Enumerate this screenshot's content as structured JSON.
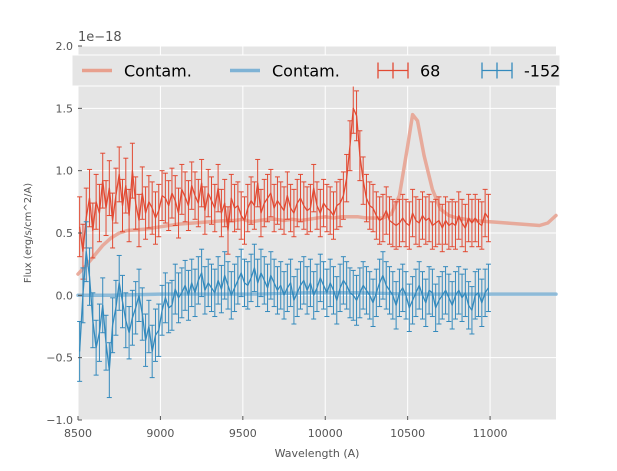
{
  "chart_data": {
    "type": "line",
    "title": "",
    "xlabel": "Wavelength (A)",
    "ylabel": "Flux (erg/s/cm^2/A)",
    "offset_text": "1e−18",
    "xlim": [
      8500,
      11400
    ],
    "ylim": [
      -1.0,
      2.0
    ],
    "x_ticks": [
      8500,
      9000,
      9500,
      10000,
      10500,
      11000
    ],
    "x_tick_labels": [
      "8500",
      "9000",
      "9500",
      "10000",
      "10500",
      "11000"
    ],
    "y_ticks": [
      -1.0,
      -0.5,
      0.0,
      0.5,
      1.0,
      1.5,
      2.0
    ],
    "y_tick_labels": [
      "−1.0",
      "−0.5",
      "0.0",
      "0.5",
      "1.0",
      "1.5",
      "2.0"
    ],
    "grid": true,
    "legend_position": "top",
    "legend": [
      {
        "label": "Contam.",
        "kind": "line",
        "color": "#E8A08E"
      },
      {
        "label": "Contam.",
        "kind": "line",
        "color": "#7FB3D5"
      },
      {
        "label": "68",
        "kind": "errorbar",
        "color": "#E24A33"
      },
      {
        "label": "-152",
        "kind": "errorbar",
        "color": "#348ABD"
      }
    ],
    "series": [
      {
        "name": "68",
        "kind": "errorbar",
        "color": "#E24A33",
        "contam_color": "#E8A08E",
        "x_start": 8510,
        "x_step": 20,
        "y": [
          0.55,
          0.35,
          0.62,
          0.78,
          0.52,
          0.75,
          0.66,
          0.92,
          0.7,
          0.86,
          0.6,
          0.8,
          0.97,
          0.72,
          0.88,
          0.64,
          1.0,
          0.74,
          0.6,
          0.82,
          0.66,
          0.75,
          0.7,
          0.62,
          0.68,
          0.8,
          0.78,
          0.72,
          0.82,
          0.76,
          0.66,
          0.85,
          0.79,
          0.72,
          0.88,
          0.8,
          0.74,
          0.9,
          0.68,
          0.82,
          0.76,
          0.7,
          0.86,
          0.66,
          0.74,
          0.52,
          0.78,
          0.7,
          0.72,
          0.64,
          0.6,
          0.7,
          0.76,
          0.72,
          0.9,
          0.66,
          0.74,
          0.78,
          0.82,
          0.7,
          0.76,
          0.72,
          0.68,
          0.8,
          0.7,
          0.66,
          0.74,
          0.78,
          0.72,
          0.68,
          0.7,
          0.86,
          0.72,
          0.66,
          0.74,
          0.7,
          0.68,
          0.64,
          0.72,
          0.74,
          0.8,
          0.94,
          1.2,
          1.5,
          1.44,
          1.12,
          0.92,
          0.78,
          0.72,
          0.7,
          0.64,
          0.6,
          0.62,
          0.68,
          0.6,
          0.58,
          0.56,
          0.58,
          0.62,
          0.58,
          0.56,
          0.66,
          0.6,
          0.58,
          0.64,
          0.6,
          0.62,
          0.56,
          0.58,
          0.6,
          0.54,
          0.6,
          0.56,
          0.58,
          0.56,
          0.64,
          0.58,
          0.54,
          0.62,
          0.58,
          0.62,
          0.58,
          0.56,
          0.66,
          0.62
        ],
        "yerr": [
          0.24,
          0.22,
          0.24,
          0.23,
          0.22,
          0.22,
          0.23,
          0.22,
          0.22,
          0.22,
          0.22,
          0.22,
          0.22,
          0.21,
          0.22,
          0.21,
          0.22,
          0.21,
          0.21,
          0.21,
          0.21,
          0.21,
          0.21,
          0.21,
          0.21,
          0.2,
          0.2,
          0.2,
          0.2,
          0.2,
          0.2,
          0.2,
          0.2,
          0.2,
          0.19,
          0.19,
          0.19,
          0.19,
          0.19,
          0.19,
          0.19,
          0.19,
          0.19,
          0.19,
          0.19,
          0.19,
          0.19,
          0.19,
          0.19,
          0.19,
          0.19,
          0.19,
          0.19,
          0.19,
          0.19,
          0.19,
          0.19,
          0.19,
          0.19,
          0.19,
          0.19,
          0.19,
          0.19,
          0.19,
          0.19,
          0.19,
          0.19,
          0.19,
          0.19,
          0.19,
          0.19,
          0.19,
          0.19,
          0.19,
          0.19,
          0.19,
          0.19,
          0.19,
          0.19,
          0.19,
          0.19,
          0.19,
          0.2,
          0.2,
          0.2,
          0.2,
          0.19,
          0.19,
          0.19,
          0.19,
          0.19,
          0.19,
          0.19,
          0.19,
          0.19,
          0.19,
          0.19,
          0.19,
          0.19,
          0.19,
          0.19,
          0.19,
          0.19,
          0.19,
          0.19,
          0.19,
          0.19,
          0.19,
          0.19,
          0.19,
          0.19,
          0.19,
          0.19,
          0.19,
          0.19,
          0.19,
          0.19,
          0.19,
          0.19,
          0.19,
          0.19,
          0.19,
          0.19,
          0.19,
          0.19
        ],
        "contam": [
          [
            8500,
            0.17
          ],
          [
            8550,
            0.24
          ],
          [
            8600,
            0.32
          ],
          [
            8650,
            0.4
          ],
          [
            8700,
            0.46
          ],
          [
            8750,
            0.5
          ],
          [
            8800,
            0.52
          ],
          [
            8900,
            0.53
          ],
          [
            9000,
            0.55
          ],
          [
            9100,
            0.57
          ],
          [
            9200,
            0.58
          ],
          [
            9300,
            0.59
          ],
          [
            9400,
            0.6
          ],
          [
            9450,
            0.6
          ],
          [
            9500,
            0.61
          ],
          [
            9550,
            0.59
          ],
          [
            9600,
            0.6
          ],
          [
            9650,
            0.61
          ],
          [
            9700,
            0.61
          ],
          [
            9750,
            0.6
          ],
          [
            9800,
            0.61
          ],
          [
            9850,
            0.6
          ],
          [
            9900,
            0.61
          ],
          [
            9950,
            0.62
          ],
          [
            10000,
            0.63
          ],
          [
            10050,
            0.62
          ],
          [
            10100,
            0.63
          ],
          [
            10150,
            0.63
          ],
          [
            10200,
            0.63
          ],
          [
            10250,
            0.62
          ],
          [
            10300,
            0.62
          ],
          [
            10350,
            0.62
          ],
          [
            10400,
            0.65
          ],
          [
            10450,
            0.8
          ],
          [
            10500,
            1.2
          ],
          [
            10530,
            1.45
          ],
          [
            10560,
            1.4
          ],
          [
            10600,
            1.12
          ],
          [
            10650,
            0.85
          ],
          [
            10700,
            0.69
          ],
          [
            10750,
            0.64
          ],
          [
            10800,
            0.62
          ],
          [
            10900,
            0.6
          ],
          [
            11000,
            0.59
          ],
          [
            11100,
            0.58
          ],
          [
            11200,
            0.57
          ],
          [
            11300,
            0.56
          ],
          [
            11350,
            0.58
          ],
          [
            11400,
            0.64
          ]
        ]
      },
      {
        "name": "-152",
        "kind": "errorbar",
        "color": "#348ABD",
        "contam_color": "#7FB3D5",
        "x_start": 8510,
        "x_step": 20,
        "y": [
          -0.45,
          0.0,
          0.35,
          0.15,
          -0.2,
          -0.42,
          -0.3,
          -0.08,
          -0.38,
          -0.6,
          -0.24,
          -0.1,
          0.1,
          -0.05,
          -0.2,
          -0.3,
          -0.18,
          -0.1,
          0.0,
          -0.15,
          -0.36,
          -0.25,
          -0.45,
          -0.32,
          -0.28,
          -0.12,
          -0.02,
          -0.1,
          -0.08,
          0.05,
          -0.02,
          0.02,
          0.08,
          0.0,
          0.1,
          0.02,
          0.12,
          0.18,
          0.04,
          0.1,
          0.06,
          0.02,
          0.12,
          0.05,
          0.16,
          0.08,
          0.0,
          0.06,
          0.12,
          0.18,
          0.1,
          0.08,
          0.14,
          0.22,
          0.1,
          0.18,
          0.12,
          0.06,
          0.16,
          0.1,
          0.04,
          0.08,
          0.0,
          0.06,
          0.1,
          -0.04,
          0.02,
          0.08,
          0.12,
          0.04,
          0.1,
          0.0,
          0.06,
          0.14,
          0.08,
          0.02,
          0.1,
          0.04,
          -0.04,
          0.06,
          0.12,
          0.08,
          0.02,
          0.0,
          -0.04,
          0.02,
          0.08,
          0.04,
          0.0,
          -0.06,
          0.02,
          0.1,
          0.16,
          0.08,
          0.04,
          0.0,
          -0.08,
          0.02,
          0.06,
          0.0,
          -0.1,
          -0.04,
          0.02,
          0.08,
          0.0,
          -0.06,
          0.04,
          0.02,
          -0.1,
          -0.04,
          0.0,
          0.04,
          -0.02,
          -0.08,
          0.0,
          0.04,
          -0.02,
          0.02,
          -0.08,
          -0.12,
          0.0,
          0.02,
          -0.06,
          0.02,
          0.06
        ],
        "yerr": [
          0.24,
          0.22,
          0.24,
          0.23,
          0.22,
          0.22,
          0.23,
          0.22,
          0.22,
          0.22,
          0.22,
          0.22,
          0.22,
          0.21,
          0.22,
          0.21,
          0.22,
          0.21,
          0.21,
          0.21,
          0.21,
          0.21,
          0.21,
          0.21,
          0.21,
          0.2,
          0.2,
          0.2,
          0.2,
          0.2,
          0.2,
          0.2,
          0.2,
          0.2,
          0.19,
          0.19,
          0.19,
          0.19,
          0.19,
          0.19,
          0.19,
          0.19,
          0.19,
          0.19,
          0.19,
          0.19,
          0.19,
          0.19,
          0.19,
          0.19,
          0.19,
          0.19,
          0.19,
          0.19,
          0.19,
          0.19,
          0.19,
          0.19,
          0.19,
          0.19,
          0.19,
          0.19,
          0.19,
          0.19,
          0.19,
          0.19,
          0.19,
          0.19,
          0.19,
          0.19,
          0.19,
          0.19,
          0.19,
          0.19,
          0.19,
          0.19,
          0.19,
          0.19,
          0.19,
          0.19,
          0.19,
          0.19,
          0.2,
          0.2,
          0.2,
          0.2,
          0.19,
          0.19,
          0.19,
          0.19,
          0.19,
          0.19,
          0.19,
          0.19,
          0.19,
          0.19,
          0.19,
          0.19,
          0.19,
          0.19,
          0.19,
          0.19,
          0.19,
          0.19,
          0.19,
          0.19,
          0.19,
          0.19,
          0.19,
          0.19,
          0.19,
          0.19,
          0.19,
          0.19,
          0.19,
          0.19,
          0.19,
          0.19,
          0.19,
          0.19,
          0.19,
          0.19,
          0.19,
          0.19,
          0.19
        ],
        "contam": [
          [
            8500,
            0.0
          ],
          [
            8700,
            0.0
          ],
          [
            9000,
            0.01
          ],
          [
            9300,
            0.01
          ],
          [
            9600,
            0.01
          ],
          [
            9900,
            0.02
          ],
          [
            10200,
            0.02
          ],
          [
            10500,
            0.01
          ],
          [
            10800,
            0.01
          ],
          [
            11100,
            0.01
          ],
          [
            11400,
            0.01
          ]
        ]
      }
    ]
  }
}
